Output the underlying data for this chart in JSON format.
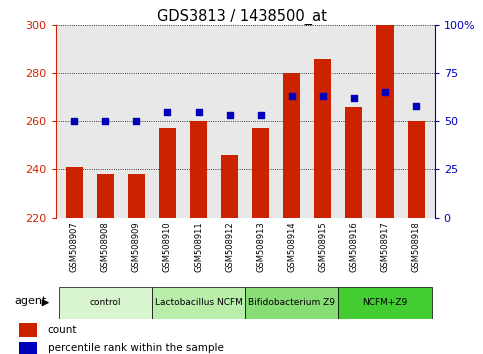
{
  "title": "GDS3813 / 1438500_at",
  "samples": [
    "GSM508907",
    "GSM508908",
    "GSM508909",
    "GSM508910",
    "GSM508911",
    "GSM508912",
    "GSM508913",
    "GSM508914",
    "GSM508915",
    "GSM508916",
    "GSM508917",
    "GSM508918"
  ],
  "count_values": [
    241,
    238,
    238,
    257,
    260,
    246,
    257,
    280,
    286,
    266,
    300,
    260
  ],
  "percentile_values": [
    50,
    50,
    50,
    55,
    55,
    53,
    53,
    63,
    63,
    62,
    65,
    58
  ],
  "ylim_left": [
    220,
    300
  ],
  "ylim_right": [
    0,
    100
  ],
  "yticks_left": [
    220,
    240,
    260,
    280,
    300
  ],
  "yticks_right": [
    0,
    25,
    50,
    75,
    100
  ],
  "bar_color": "#cc2200",
  "dot_color": "#0000bb",
  "groups": [
    {
      "label": "control",
      "indices": [
        0,
        1,
        2
      ],
      "color": "#d8f5d0"
    },
    {
      "label": "Lactobacillus NCFM",
      "indices": [
        3,
        4,
        5
      ],
      "color": "#b8edaa"
    },
    {
      "label": "Bifidobacterium Z9",
      "indices": [
        6,
        7,
        8
      ],
      "color": "#88dd77"
    },
    {
      "label": "NCFM+Z9",
      "indices": [
        9,
        10,
        11
      ],
      "color": "#44cc33"
    }
  ],
  "agent_label": "agent",
  "legend_count_label": "count",
  "legend_percentile_label": "percentile rank within the sample",
  "background_color": "#ffffff",
  "plot_bg_color": "#e8e8e8",
  "bar_width": 0.55,
  "dot_size": 22,
  "left_tick_color": "#cc2200",
  "right_tick_color": "#0000bb",
  "sample_label_bg": "#d8d8d8"
}
